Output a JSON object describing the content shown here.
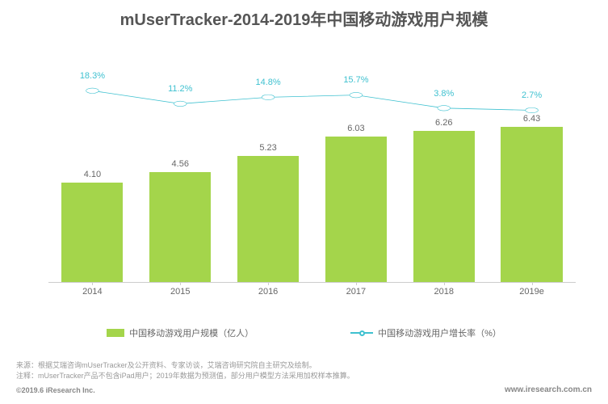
{
  "title": "mUserTracker-2014-2019年中国移动游戏用户规模",
  "title_fontsize": 20,
  "chart": {
    "type": "bar+line",
    "categories": [
      "2014",
      "2015",
      "2016",
      "2017",
      "2018",
      "2019e"
    ],
    "bar": {
      "values": [
        4.1,
        4.56,
        5.23,
        6.03,
        6.26,
        6.43
      ],
      "labels": [
        "4.10",
        "4.56",
        "5.23",
        "6.03",
        "6.26",
        "6.43"
      ],
      "color": "#a4d54b",
      "y_max": 9.0,
      "label_color": "#666666",
      "label_fontsize": 11
    },
    "line": {
      "values": [
        18.3,
        11.2,
        14.8,
        15.7,
        3.8,
        2.7
      ],
      "labels": [
        "18.3%",
        "11.2%",
        "14.8%",
        "15.7%",
        "3.8%",
        "2.7%"
      ],
      "color": "#3fc1d0",
      "y_pos_pct": [
        12,
        18,
        15,
        14,
        20,
        21
      ],
      "line_width": 2,
      "marker": "circle",
      "marker_fill": "#ffffff",
      "marker_size": 7,
      "label_fontsize": 11
    },
    "x_axis": {
      "tick_color": "#cccccc",
      "label_color": "#666666",
      "label_fontsize": 11
    },
    "background": "#ffffff"
  },
  "legend": {
    "bar_label": "中国移动游戏用户规模（亿人）",
    "line_label": "中国移动游戏用户增长率（%）"
  },
  "footer": {
    "note1": "来源：根据艾瑞咨询mUserTracker及公开资料、专家访谈，艾瑞咨询研究院自主研究及绘制。",
    "note2": "注释：mUserTracker产品不包含iPad用户；2019年数据为预测值，部分用户模型方法采用加权样本推算。",
    "copyright": "©2019.6 iResearch Inc.",
    "source": "www.iresearch.com.cn"
  }
}
